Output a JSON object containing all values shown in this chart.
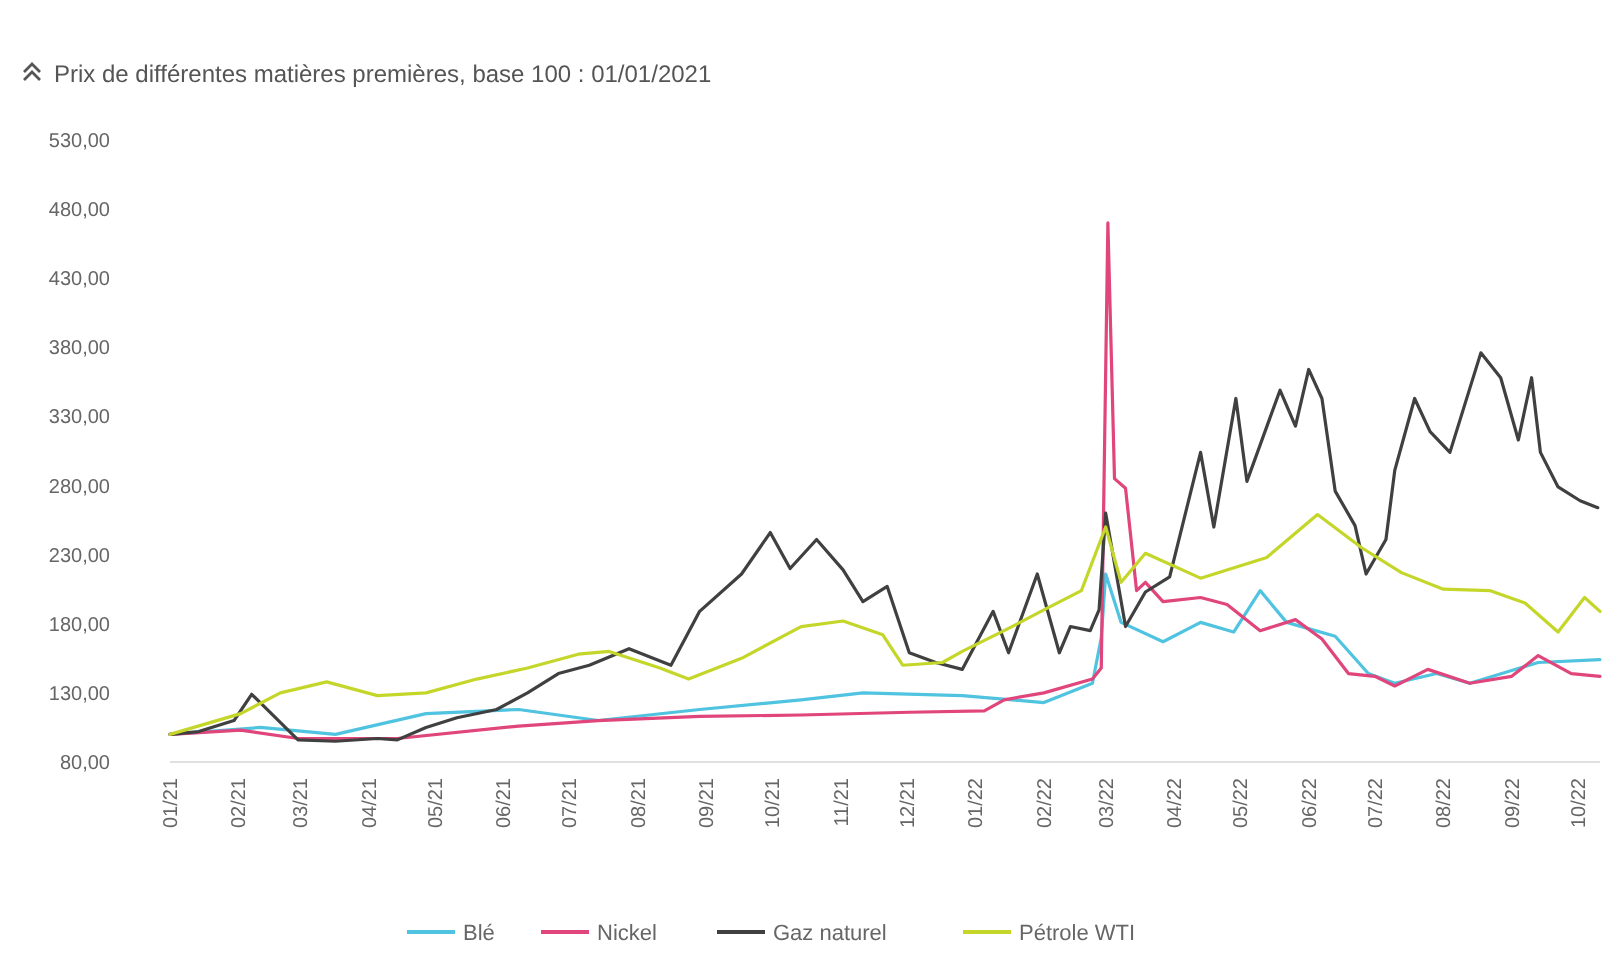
{
  "chart_data": {
    "type": "line",
    "title": "Prix de différentes matières premières, base 100 : 01/01/2021",
    "xlim": [
      "2021-01-01",
      "2022-10-11"
    ],
    "xticks": [
      {
        "value": "2021-01-01",
        "label": "01/21"
      },
      {
        "value": "2021-02-01",
        "label": "02/21"
      },
      {
        "value": "2021-03-01",
        "label": "03/21"
      },
      {
        "value": "2021-04-01",
        "label": "04/21"
      },
      {
        "value": "2021-05-01",
        "label": "05/21"
      },
      {
        "value": "2021-06-01",
        "label": "06/21"
      },
      {
        "value": "2021-07-01",
        "label": "07/21"
      },
      {
        "value": "2021-08-01",
        "label": "08/21"
      },
      {
        "value": "2021-09-01",
        "label": "09/21"
      },
      {
        "value": "2021-10-01",
        "label": "10/21"
      },
      {
        "value": "2021-11-01",
        "label": "11/21"
      },
      {
        "value": "2021-12-01",
        "label": "12/21"
      },
      {
        "value": "2022-01-01",
        "label": "01/22"
      },
      {
        "value": "2022-02-01",
        "label": "02/22"
      },
      {
        "value": "2022-03-01",
        "label": "03/22"
      },
      {
        "value": "2022-04-01",
        "label": "04/22"
      },
      {
        "value": "2022-05-01",
        "label": "05/22"
      },
      {
        "value": "2022-06-01",
        "label": "06/22"
      },
      {
        "value": "2022-07-01",
        "label": "07/22"
      },
      {
        "value": "2022-08-01",
        "label": "08/22"
      },
      {
        "value": "2022-09-01",
        "label": "09/22"
      },
      {
        "value": "2022-10-01",
        "label": "10/22"
      }
    ],
    "ylim": [
      80,
      530
    ],
    "yticks": [
      {
        "value": 80,
        "label": "80,00"
      },
      {
        "value": 130,
        "label": "130,00"
      },
      {
        "value": 180,
        "label": "180,00"
      },
      {
        "value": 230,
        "label": "230,00"
      },
      {
        "value": 280,
        "label": "280,00"
      },
      {
        "value": 330,
        "label": "330,00"
      },
      {
        "value": 380,
        "label": "380,00"
      },
      {
        "value": 430,
        "label": "430,00"
      },
      {
        "value": 480,
        "label": "480,00"
      },
      {
        "value": 530,
        "label": "530,00"
      }
    ],
    "legend": "bottom",
    "marker": "none",
    "line_style": "solid",
    "series": [
      {
        "name": "Blé",
        "color": "#4fc3df",
        "x": [
          "2021-01-01",
          "2021-02-11",
          "2021-03-17",
          "2021-04-27",
          "2021-06-08",
          "2021-07-14",
          "2021-08-29",
          "2021-10-14",
          "2021-11-11",
          "2021-12-26",
          "2022-02-01",
          "2022-02-23",
          "2022-02-27",
          "2022-03-01",
          "2022-03-08",
          "2022-03-27",
          "2022-04-13",
          "2022-04-28",
          "2022-05-10",
          "2022-05-22",
          "2022-06-13",
          "2022-06-28",
          "2022-07-10",
          "2022-07-29",
          "2022-08-13",
          "2022-09-13",
          "2022-10-11"
        ],
        "values": [
          100,
          105,
          100,
          115,
          118,
          110,
          118,
          125,
          130,
          128,
          123,
          137,
          170,
          216,
          181,
          167,
          181,
          174,
          204,
          181,
          171,
          144,
          137,
          144,
          137,
          152,
          154
        ]
      },
      {
        "name": "Nickel",
        "color": "#e0457b",
        "x": [
          "2021-01-01",
          "2021-02-02",
          "2021-02-28",
          "2021-04-14",
          "2021-06-08",
          "2021-07-14",
          "2021-08-29",
          "2021-10-14",
          "2021-12-02",
          "2022-01-05",
          "2022-01-14",
          "2022-02-01",
          "2022-02-23",
          "2022-02-27",
          "2022-03-02",
          "2022-03-05",
          "2022-03-10",
          "2022-03-15",
          "2022-03-19",
          "2022-03-27",
          "2022-04-13",
          "2022-04-25",
          "2022-05-10",
          "2022-05-26",
          "2022-06-07",
          "2022-06-19",
          "2022-07-01",
          "2022-07-10",
          "2022-07-25",
          "2022-08-13",
          "2022-09-01",
          "2022-09-13",
          "2022-09-28",
          "2022-10-11"
        ],
        "values": [
          100,
          103,
          97,
          97,
          106,
          110,
          113,
          114,
          116,
          117,
          125,
          130,
          140,
          148,
          470,
          285,
          278,
          204,
          210,
          196,
          199,
          194,
          175,
          183,
          169,
          144,
          142,
          135,
          147,
          137,
          142,
          157,
          144,
          142
        ]
      },
      {
        "name": "Gaz naturel",
        "color": "#404040",
        "x": [
          "2021-01-01",
          "2021-01-14",
          "2021-01-30",
          "2021-02-07",
          "2021-02-14",
          "2021-02-28",
          "2021-03-17",
          "2021-04-05",
          "2021-04-14",
          "2021-04-27",
          "2021-05-11",
          "2021-05-29",
          "2021-06-12",
          "2021-06-26",
          "2021-07-10",
          "2021-07-28",
          "2021-08-16",
          "2021-08-29",
          "2021-09-17",
          "2021-09-30",
          "2021-10-09",
          "2021-10-21",
          "2021-11-02",
          "2021-11-11",
          "2021-11-22",
          "2021-12-02",
          "2021-12-14",
          "2021-12-26",
          "2022-01-09",
          "2022-01-16",
          "2022-01-29",
          "2022-02-08",
          "2022-02-13",
          "2022-02-22",
          "2022-02-26",
          "2022-03-01",
          "2022-03-10",
          "2022-03-19",
          "2022-03-30",
          "2022-04-13",
          "2022-04-19",
          "2022-04-29",
          "2022-05-04",
          "2022-05-19",
          "2022-05-26",
          "2022-06-01",
          "2022-06-07",
          "2022-06-13",
          "2022-06-22",
          "2022-06-27",
          "2022-07-06",
          "2022-07-10",
          "2022-07-19",
          "2022-07-26",
          "2022-08-04",
          "2022-08-18",
          "2022-08-27",
          "2022-09-04",
          "2022-09-10",
          "2022-09-14",
          "2022-09-22",
          "2022-10-02",
          "2022-10-10"
        ],
        "values": [
          100,
          102,
          110,
          129,
          118,
          96,
          95,
          97,
          96,
          105,
          112,
          118,
          130,
          144,
          150,
          162,
          150,
          189,
          216,
          246,
          220,
          241,
          219,
          196,
          207,
          159,
          152,
          147,
          189,
          159,
          216,
          159,
          178,
          175,
          190,
          260,
          178,
          203,
          214,
          304,
          250,
          343,
          283,
          349,
          323,
          364,
          343,
          276,
          251,
          216,
          241,
          291,
          343,
          319,
          304,
          376,
          358,
          313,
          358,
          304,
          279,
          269,
          264
        ]
      },
      {
        "name": "Pétrole WTI",
        "color": "#c5d62a",
        "x": [
          "2021-01-01",
          "2021-02-02",
          "2021-02-20",
          "2021-03-13",
          "2021-04-05",
          "2021-04-27",
          "2021-05-20",
          "2021-06-12",
          "2021-07-05",
          "2021-07-19",
          "2021-08-11",
          "2021-08-24",
          "2021-09-17",
          "2021-10-14",
          "2021-11-02",
          "2021-11-20",
          "2021-11-29",
          "2021-12-17",
          "2021-12-26",
          "2022-01-14",
          "2022-02-01",
          "2022-02-18",
          "2022-03-01",
          "2022-03-08",
          "2022-03-19",
          "2022-04-13",
          "2022-05-13",
          "2022-06-05",
          "2022-06-25",
          "2022-07-13",
          "2022-08-01",
          "2022-08-22",
          "2022-09-07",
          "2022-09-22",
          "2022-10-04",
          "2022-10-11"
        ],
        "values": [
          100,
          115,
          130,
          138,
          128,
          130,
          140,
          148,
          158,
          160,
          148,
          140,
          155,
          178,
          182,
          172,
          150,
          152,
          160,
          175,
          190,
          204,
          250,
          210,
          231,
          213,
          228,
          259,
          235,
          217,
          205,
          204,
          195,
          174,
          199,
          189
        ]
      }
    ]
  }
}
